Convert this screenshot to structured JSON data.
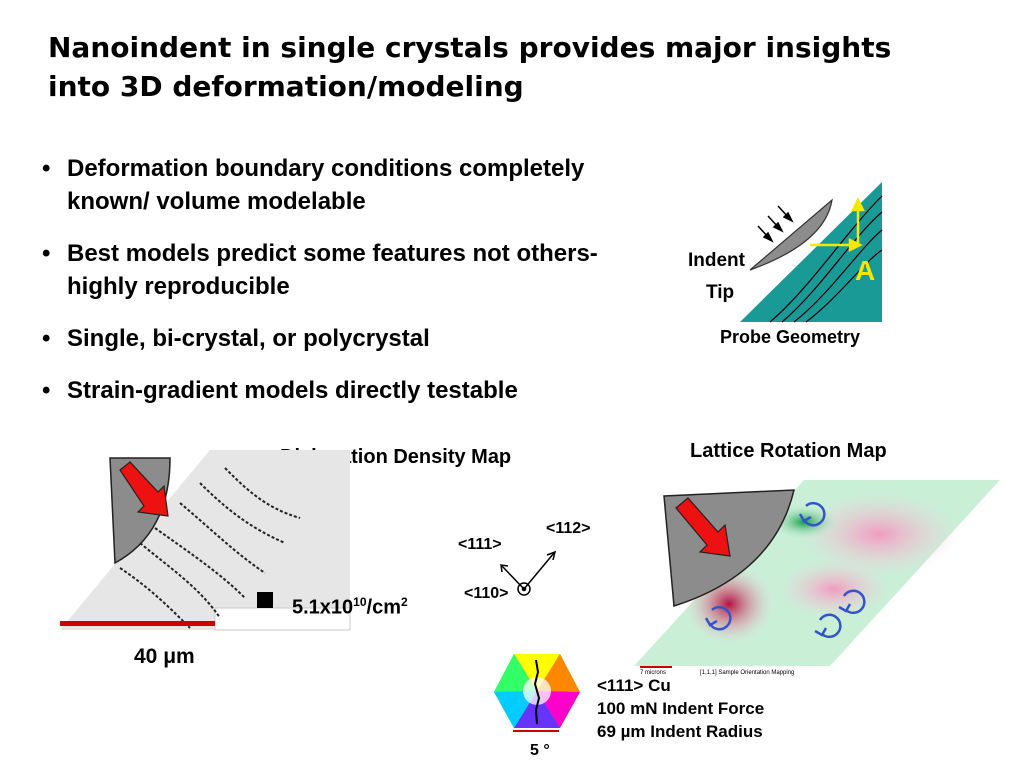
{
  "slide": {
    "title_line1": "Nanoindent in single crystals provides major insights",
    "title_line2": "into 3D deformation/modeling",
    "bullets": [
      "Deformation boundary conditions completely known/ volume modelable",
      "Best models predict some features not others-highly reproducible",
      "Single, bi-crystal, or polycrystal",
      "Strain-gradient models directly testable"
    ]
  },
  "probe_geometry": {
    "indent_label": "Indent",
    "tip_label": "Tip",
    "a_label": "A",
    "caption": "Probe Geometry",
    "colors": {
      "crystal": "#1a9a96",
      "tip": "#8c8c8c",
      "arrow": "#f7e600"
    }
  },
  "dislocation_map": {
    "title": "Dislocation Density Map",
    "density_value": "5.1x10",
    "density_exp": "10",
    "density_unit": "/cm",
    "density_unit_exp": "2",
    "scale_label": "40 μm",
    "colors": {
      "arrow": "#ee1111",
      "scalebar": "#cc0000"
    }
  },
  "orientation": {
    "dir_111": "<111>",
    "dir_112": "<112>",
    "dir_110": "<110>"
  },
  "lattice_map": {
    "title": "Lattice Rotation Map",
    "micro_scale_label": "7 microns",
    "micro_caption": "[1,1,1] Sample Orientation Mapping",
    "legend_angle": "5 °",
    "info_line1": "<111> Cu",
    "info_line2": "100 mN Indent Force",
    "info_line3": "69 µm Indent Radius",
    "colors": {
      "rotation_arrow": "#3355cc"
    }
  }
}
